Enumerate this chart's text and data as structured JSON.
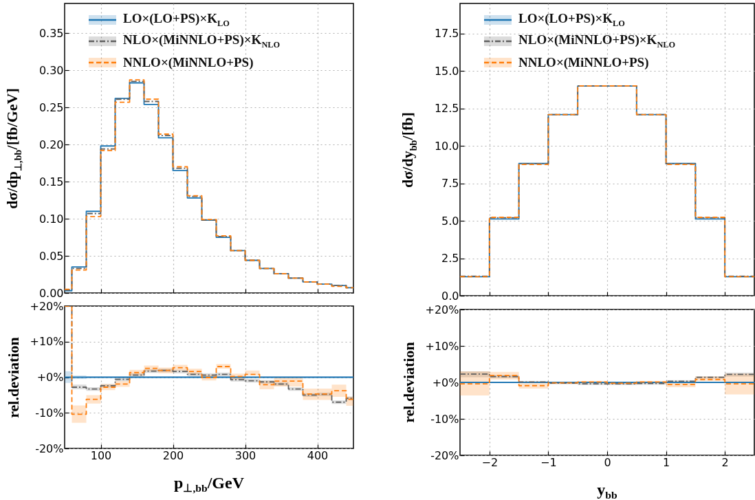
{
  "chart_data": [
    {
      "type": "step",
      "ylabel": "dσ/dp$_{⊥,bb}$/[fb/GeV]",
      "x": [
        50,
        60,
        80,
        100,
        120,
        140,
        160,
        180,
        200,
        220,
        240,
        260,
        280,
        300,
        320,
        340,
        360,
        380,
        400,
        420,
        440,
        450
      ],
      "xlim": [
        50,
        450
      ],
      "xticks": [
        100,
        200,
        300,
        400
      ],
      "ylim": [
        0,
        0.39
      ],
      "yticks": [
        {
          "value": 0,
          "label": "0.00"
        },
        0.05,
        {
          "value": 0.1,
          "label": "0.10"
        },
        0.15,
        {
          "value": 0.2,
          "label": "0.20"
        },
        0.25,
        {
          "value": 0.3,
          "label": "0.30"
        },
        0.35
      ],
      "tick_labels": "y",
      "grid": true,
      "legend": "top left",
      "series": [
        {
          "name": "LO×(LO+PS)×K$_{LO}$",
          "color": "#1f77b4",
          "line_style": "solid",
          "values": [
            0.003,
            0.035,
            0.11,
            0.198,
            0.262,
            0.283,
            0.254,
            0.209,
            0.165,
            0.128,
            0.098,
            0.075,
            0.057,
            0.044,
            0.033,
            0.026,
            0.02,
            0.015,
            0.012,
            0.01,
            0.007,
            0.007
          ]
        },
        {
          "name": "NLO×(MiNNLO+PS)×K$_{NLO}$",
          "color": "#5f5f5f",
          "line_style": "dashdot",
          "values": [
            0.004,
            0.033,
            0.107,
            0.194,
            0.261,
            0.285,
            0.258,
            0.212,
            0.168,
            0.13,
            0.098,
            0.076,
            0.057,
            0.044,
            0.033,
            0.026,
            0.02,
            0.015,
            0.012,
            0.01,
            0.007,
            0.007
          ]
        },
        {
          "name": "NNLO×(MiNNLO+PS)",
          "color": "#ff7f0e",
          "line_style": "dashed",
          "values": [
            0.005,
            0.031,
            0.103,
            0.192,
            0.257,
            0.287,
            0.261,
            0.214,
            0.17,
            0.131,
            0.099,
            0.077,
            0.057,
            0.044,
            0.033,
            0.026,
            0.02,
            0.015,
            0.012,
            0.009,
            0.007,
            0.007
          ]
        }
      ]
    },
    {
      "type": "step",
      "ylabel": "dσ/dy$_{bb}$/[fb]",
      "x": [
        -2.5,
        -2,
        -1.5,
        -1,
        -0.5,
        0,
        0.5,
        1,
        1.5,
        2,
        2.5
      ],
      "xlim": [
        -2.5,
        2.5
      ],
      "xticks": [
        -2,
        -1,
        0,
        1,
        2
      ],
      "ylim": [
        0,
        19.5
      ],
      "yticks": [
        {
          "value": 0,
          "label": "0.0"
        },
        2.5,
        {
          "value": 5,
          "label": "5.0"
        },
        7.5,
        {
          "value": 10,
          "label": "10.0"
        },
        12.5,
        {
          "value": 15,
          "label": "15.0"
        },
        17.5
      ],
      "tick_labels": "y",
      "grid": true,
      "legend": "top left",
      "series": [
        {
          "name": "LO×(LO+PS)×K$_{LO}$",
          "color": "#1f77b4",
          "line_style": "solid",
          "values": [
            1.27,
            5.12,
            8.82,
            12.08,
            13.99,
            13.99,
            12.08,
            8.82,
            5.12,
            1.27,
            1.27
          ]
        },
        {
          "name": "NLO×(MiNNLO+PS)×K$_{NLO}$",
          "color": "#5f5f5f",
          "line_style": "dashdot",
          "values": [
            1.3,
            5.2,
            8.8,
            12.08,
            14.0,
            14.0,
            12.08,
            8.8,
            5.2,
            1.3,
            1.3
          ]
        },
        {
          "name": "NNLO×(MiNNLO+PS)",
          "color": "#ff7f0e",
          "line_style": "dashed",
          "values": [
            1.27,
            5.23,
            8.76,
            12.08,
            14.0,
            14.0,
            12.08,
            8.76,
            5.23,
            1.27,
            1.27
          ]
        }
      ]
    },
    {
      "type": "step",
      "xlabel": "p$_{⊥,bb}$/GeV",
      "ylabel": "rel.deviation",
      "x": [
        50,
        60,
        80,
        100,
        120,
        140,
        160,
        180,
        200,
        220,
        240,
        260,
        280,
        300,
        320,
        340,
        360,
        380,
        400,
        420,
        440,
        450
      ],
      "xlim": [
        50,
        450
      ],
      "xticks": [
        100,
        200,
        300,
        400
      ],
      "ylim": [
        -20,
        20
      ],
      "yticks": [
        {
          "value": 20,
          "label": "+20%"
        },
        {
          "value": 10,
          "label": "+10%"
        },
        {
          "value": 0,
          "label": "+0%"
        },
        {
          "value": -10,
          "label": "-10%"
        },
        {
          "value": -20,
          "label": "-20%"
        }
      ],
      "grid": true,
      "series": [
        {
          "color": "#1f77b4",
          "line_style": "solid",
          "values": [
            0,
            0,
            0,
            0,
            0,
            0,
            0,
            0,
            0,
            0,
            0,
            0,
            0,
            0,
            0,
            0,
            0,
            0,
            0,
            0,
            0,
            0
          ],
          "lower": [
            -1.6,
            -0.5,
            -0.3,
            -0.3,
            -0.3,
            -0.3,
            -0.3,
            -0.3,
            -0.3,
            -0.3,
            -0.3,
            -0.3,
            -0.3,
            -0.3,
            -0.3,
            -0.3,
            -0.3,
            -0.3,
            -0.3,
            -0.3,
            -0.3,
            -0.3
          ],
          "upper": [
            1.7,
            0.5,
            0.3,
            0.3,
            0.3,
            0.3,
            0.3,
            0.3,
            0.3,
            0.3,
            0.3,
            0.3,
            0.3,
            0.3,
            0.3,
            0.3,
            0.3,
            0.3,
            0.3,
            0.3,
            0.3,
            0.3
          ]
        },
        {
          "color": "#5f5f5f",
          "line_style": "dashdot",
          "values": [
            20,
            -2.8,
            -3.3,
            -2.4,
            -0.6,
            0.6,
            1.7,
            1.9,
            1.6,
            0.8,
            0.6,
            0.8,
            -0.7,
            -1.0,
            -1.3,
            -1.9,
            -3.3,
            -5.0,
            -4.8,
            -7.0,
            -5.9,
            -5.9
          ],
          "lower": [
            null,
            -3.4,
            -3.8,
            -2.9,
            -1.1,
            0.1,
            1.2,
            1.4,
            1.1,
            0.3,
            0.1,
            0.3,
            -1.2,
            -1.5,
            -1.8,
            -2.4,
            -3.8,
            -5.5,
            -5.3,
            -7.5,
            -6.4,
            -6.4
          ],
          "upper": [
            null,
            -2.1,
            -2.8,
            -1.9,
            -0.1,
            1.1,
            2.2,
            2.4,
            2.1,
            1.3,
            1.1,
            1.3,
            -0.2,
            -0.5,
            -0.8,
            -1.4,
            -2.8,
            -4.5,
            -4.3,
            -6.5,
            -5.4,
            -5.4
          ]
        },
        {
          "color": "#ff7f0e",
          "line_style": "dashed",
          "values": [
            20,
            -10.4,
            -6.2,
            -2.8,
            -1.9,
            1.3,
            2.5,
            1.9,
            2.7,
            1.6,
            -0.1,
            3.0,
            0.2,
            0.8,
            -2.1,
            -1.1,
            -1.1,
            -4.7,
            -4.7,
            -3.8,
            -6.2,
            -6.2
          ],
          "lower": [
            null,
            -12.8,
            -7.4,
            -3.6,
            -2.7,
            0.5,
            1.7,
            1.1,
            1.9,
            0.8,
            -0.9,
            2.4,
            -0.6,
            0.5,
            -3.4,
            -2.6,
            -2.6,
            -6.4,
            -6.4,
            -5.5,
            -8.0,
            -8.0
          ],
          "upper": [
            null,
            -7.9,
            -5.0,
            -2.0,
            -1.1,
            2.1,
            3.3,
            2.7,
            3.5,
            2.4,
            0.7,
            3.7,
            1.0,
            1.9,
            -1.0,
            0.0,
            0.0,
            -3.2,
            -3.2,
            -2.1,
            -5.5,
            -5.5
          ]
        }
      ]
    },
    {
      "type": "step",
      "xlabel": "y$_{bb}$",
      "ylabel": "rel.deviation",
      "x": [
        -2.5,
        -2,
        -1.5,
        -1,
        -0.5,
        0,
        0.5,
        1,
        1.5,
        2,
        2.5
      ],
      "xlim": [
        -2.5,
        2.5
      ],
      "xticks": [
        {
          "value": -2,
          "label": "−2"
        },
        {
          "value": -1,
          "label": "−1"
        },
        0,
        1,
        2
      ],
      "ylim": [
        -20,
        20
      ],
      "yticks": [
        {
          "value": 20,
          "label": "+20%"
        },
        {
          "value": 10,
          "label": "+10%"
        },
        {
          "value": 0,
          "label": "+0%"
        },
        {
          "value": -10,
          "label": "-10%"
        },
        {
          "value": -20,
          "label": "-20%"
        }
      ],
      "grid": true,
      "series": [
        {
          "color": "#1f77b4",
          "line_style": "solid",
          "values": [
            0,
            0,
            0,
            0,
            0,
            0,
            0,
            0,
            0,
            0,
            0
          ]
        },
        {
          "color": "#5f5f5f",
          "line_style": "dashdot",
          "values": [
            2.3,
            1.6,
            0.1,
            -0.2,
            -0.4,
            -0.4,
            -0.3,
            0.3,
            1.4,
            2.2,
            2.2
          ],
          "lower": [
            1.4,
            1.2,
            -0.2,
            -0.5,
            -0.7,
            -0.7,
            -0.6,
            0.0,
            1.1,
            1.6,
            1.6
          ],
          "upper": [
            3.0,
            2.0,
            0.4,
            0.1,
            -0.1,
            -0.1,
            0.0,
            0.6,
            1.7,
            2.7,
            2.7
          ]
        },
        {
          "color": "#ff7f0e",
          "line_style": "dashed",
          "values": [
            -0.4,
            1.9,
            -0.9,
            -0.1,
            0.1,
            -0.2,
            0.1,
            -0.6,
            0.8,
            -0.4,
            -0.4
          ],
          "lower": [
            -3.6,
            0.8,
            -1.7,
            -0.4,
            -0.2,
            -0.5,
            -0.2,
            -1.3,
            0.4,
            -3.3,
            -3.3
          ],
          "upper": [
            3.0,
            2.9,
            -0.3,
            0.2,
            0.4,
            0.1,
            0.4,
            0.4,
            1.6,
            2.4,
            2.4
          ]
        }
      ]
    }
  ]
}
